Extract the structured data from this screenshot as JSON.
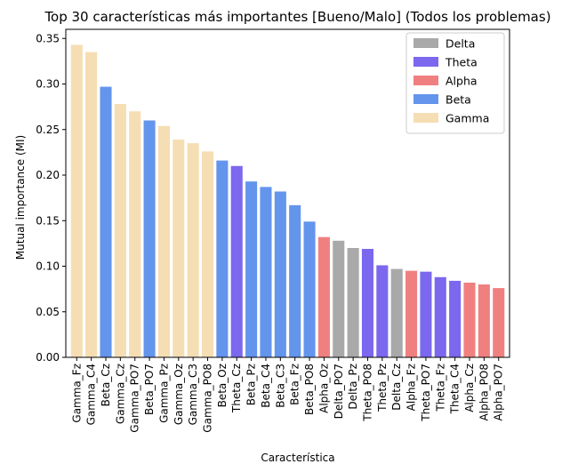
{
  "chart_data": {
    "type": "bar",
    "title": "Top 30 características más importantes [Bueno/Malo] (Todos los problemas)",
    "xlabel": "Característica",
    "ylabel": "Mutual importance (MI)",
    "ylim": [
      0,
      0.36
    ],
    "yticks": [
      "0.00",
      "0.05",
      "0.10",
      "0.15",
      "0.20",
      "0.25",
      "0.30",
      "0.35"
    ],
    "grid": false,
    "legend_position": "top-right",
    "legend": [
      {
        "name": "Delta",
        "color": "#a9a9a9"
      },
      {
        "name": "Theta",
        "color": "#7b68ee"
      },
      {
        "name": "Alpha",
        "color": "#f08080"
      },
      {
        "name": "Beta",
        "color": "#6495ed"
      },
      {
        "name": "Gamma",
        "color": "#f5deb3"
      }
    ],
    "categories": [
      "Gamma_Fz",
      "Gamma_C4",
      "Beta_Cz",
      "Gamma_Cz",
      "Gamma_PO7",
      "Beta_PO7",
      "Gamma_Pz",
      "Gamma_Oz",
      "Gamma_C3",
      "Gamma_PO8",
      "Beta_Oz",
      "Theta_Cz",
      "Beta_Pz",
      "Beta_C4",
      "Beta_C3",
      "Beta_Fz",
      "Beta_PO8",
      "Alpha_Oz",
      "Delta_PO7",
      "Delta_Pz",
      "Theta_PO8",
      "Theta_Pz",
      "Delta_Cz",
      "Alpha_Fz",
      "Theta_PO7",
      "Theta_Fz",
      "Theta_C4",
      "Alpha_Cz",
      "Alpha_PO8",
      "Alpha_PO7"
    ],
    "bands": [
      "Gamma",
      "Gamma",
      "Beta",
      "Gamma",
      "Gamma",
      "Beta",
      "Gamma",
      "Gamma",
      "Gamma",
      "Gamma",
      "Beta",
      "Theta",
      "Beta",
      "Beta",
      "Beta",
      "Beta",
      "Beta",
      "Alpha",
      "Delta",
      "Delta",
      "Theta",
      "Theta",
      "Delta",
      "Alpha",
      "Theta",
      "Theta",
      "Theta",
      "Alpha",
      "Alpha",
      "Alpha"
    ],
    "values": [
      0.343,
      0.335,
      0.297,
      0.278,
      0.27,
      0.26,
      0.254,
      0.239,
      0.235,
      0.226,
      0.216,
      0.21,
      0.193,
      0.187,
      0.182,
      0.167,
      0.149,
      0.132,
      0.128,
      0.12,
      0.119,
      0.101,
      0.097,
      0.095,
      0.094,
      0.088,
      0.084,
      0.082,
      0.08,
      0.076
    ]
  }
}
